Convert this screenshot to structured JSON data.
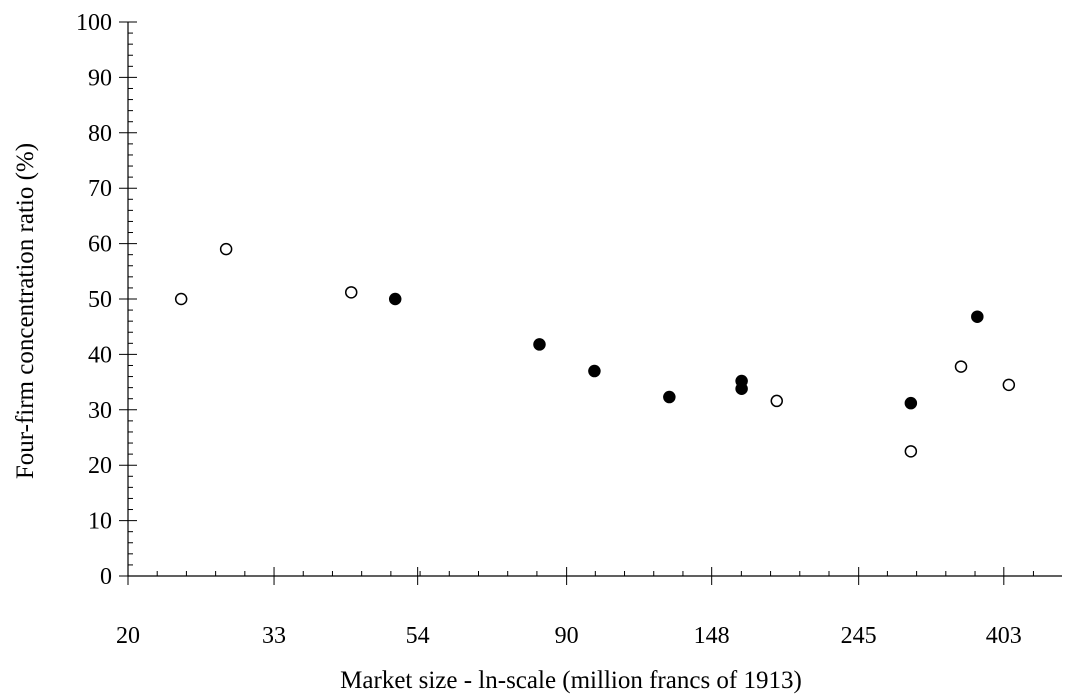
{
  "chart_data": {
    "type": "scatter",
    "title": "",
    "xlabel": "Market size - ln-scale (million francs of 1913)",
    "ylabel": "Four-firm concentration ratio (%)",
    "x_scale": "log",
    "xlim": [
      20,
      492
    ],
    "ylim": [
      0,
      100
    ],
    "x_ticks": [
      20,
      33,
      54,
      90,
      148,
      245,
      403
    ],
    "y_ticks": [
      0,
      10,
      20,
      30,
      40,
      50,
      60,
      70,
      80,
      90,
      100
    ],
    "grid": false,
    "series": [
      {
        "marker": "filled-circle",
        "color": "#000000",
        "points": [
          {
            "x": 50,
            "y": 50
          },
          {
            "x": 82,
            "y": 41.8
          },
          {
            "x": 99,
            "y": 37
          },
          {
            "x": 128,
            "y": 32.3
          },
          {
            "x": 164,
            "y": 35.2
          },
          {
            "x": 164,
            "y": 33.8
          },
          {
            "x": 293,
            "y": 31.2
          },
          {
            "x": 368,
            "y": 46.8
          }
        ]
      },
      {
        "marker": "open-circle",
        "color": "#000000",
        "points": [
          {
            "x": 24,
            "y": 50
          },
          {
            "x": 28,
            "y": 59
          },
          {
            "x": 43,
            "y": 51.2
          },
          {
            "x": 185,
            "y": 31.6
          },
          {
            "x": 293,
            "y": 22.5
          },
          {
            "x": 348,
            "y": 37.8
          },
          {
            "x": 410,
            "y": 34.5
          }
        ]
      }
    ]
  }
}
